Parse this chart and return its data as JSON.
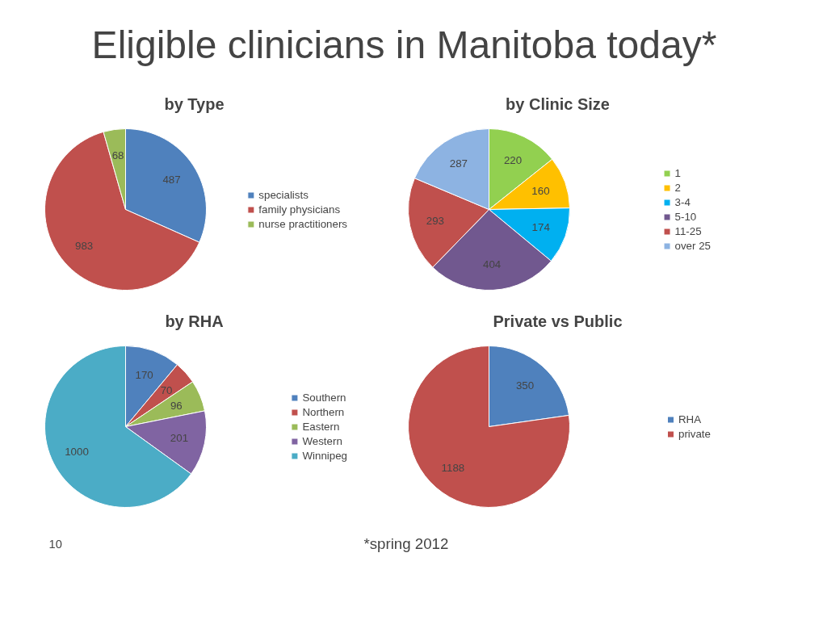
{
  "chart_data": [
    {
      "type": "pie",
      "title": "by Type",
      "categories": [
        "specialists",
        "family physicians",
        "nurse practitioners"
      ],
      "values": [
        487,
        983,
        68
      ],
      "colors": [
        "#4f81bd",
        "#c0504d",
        "#9bbb59"
      ],
      "data_labels": true,
      "legend": "right",
      "annotations": [
        "Eligible clinicians in Manitoba today*"
      ]
    },
    {
      "type": "pie",
      "title": "by Clinic Size",
      "categories": [
        "1",
        "2",
        "3-4",
        "5-10",
        "11-25",
        "over 25"
      ],
      "values": [
        220,
        160,
        174,
        404,
        293,
        287
      ],
      "colors": [
        "#92d050",
        "#ffc000",
        "#00b0f0",
        "#71588f",
        "#c0504d",
        "#8db3e2"
      ],
      "data_labels": true,
      "legend": "right"
    },
    {
      "type": "pie",
      "title": "by RHA",
      "categories": [
        "Southern",
        "Northern",
        "Eastern",
        "Western",
        "Winnipeg"
      ],
      "values": [
        170,
        70,
        96,
        201,
        1000
      ],
      "colors": [
        "#4f81bd",
        "#c0504d",
        "#9bbb59",
        "#8064a2",
        "#4bacc6"
      ],
      "data_labels": true,
      "legend": "right"
    },
    {
      "type": "pie",
      "title": "Private vs Public",
      "categories": [
        "RHA",
        "private"
      ],
      "values": [
        350,
        1188
      ],
      "colors": [
        "#4f81bd",
        "#c0504d"
      ],
      "data_labels": true,
      "legend": "right",
      "annotations": [
        "*spring 2012",
        "10"
      ]
    }
  ]
}
